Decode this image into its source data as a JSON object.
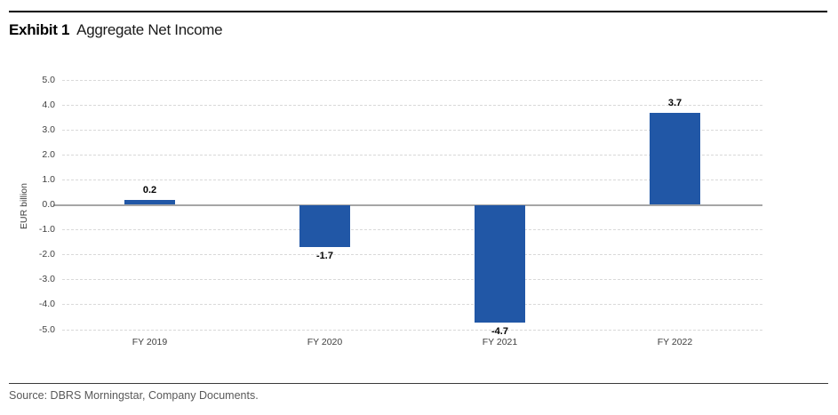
{
  "header": {
    "exhibit_label": "Exhibit 1",
    "title": "Aggregate Net Income"
  },
  "chart_data": {
    "type": "bar",
    "title": "Aggregate Net Income",
    "categories": [
      "FY 2019",
      "FY 2020",
      "FY 2021",
      "FY 2022"
    ],
    "values": [
      0.2,
      -1.7,
      -4.7,
      3.7
    ],
    "data_labels": [
      "0.2",
      "-1.7",
      "-4.7",
      "3.7"
    ],
    "xlabel": "",
    "ylabel": "EUR billion",
    "ylim": [
      -5.0,
      5.0
    ],
    "ytick_step": 1.0,
    "ytick_decimals": 1,
    "grid": true,
    "legend": "none",
    "colors": {
      "bar": "#2157A6",
      "gridline": "#D9D9D9",
      "zero_line": "#A6A6A6",
      "tick_text": "#3F3F3F",
      "data_label": "#000000",
      "source_text": "#595959"
    }
  },
  "footer": {
    "source": "Source: DBRS Morningstar, Company Documents."
  }
}
